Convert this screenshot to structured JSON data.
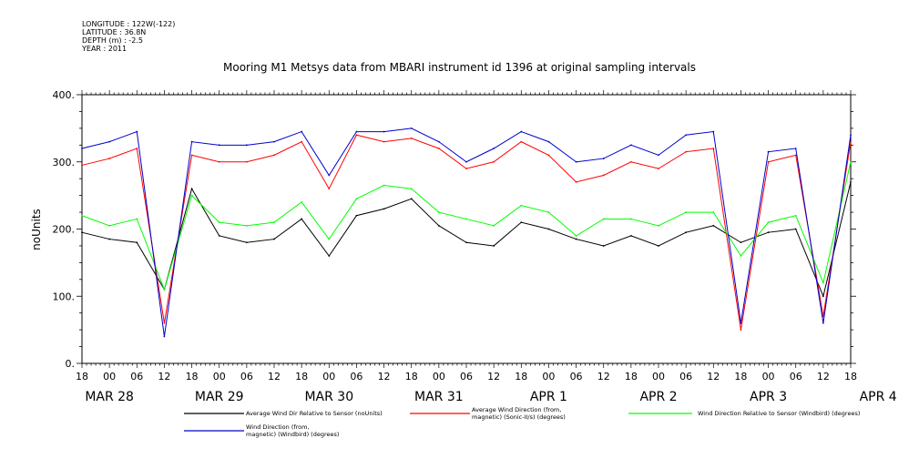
{
  "meta": {
    "longitude": "LONGITUDE : 122W(-122)",
    "latitude": "LATITUDE : 36.8N",
    "depth": "DEPTH (m) : -2.5",
    "year": "YEAR : 2011"
  },
  "chart_data": {
    "type": "line",
    "title": "Mooring M1 Metsys data from MBARI instrument id 1396 at original sampling intervals",
    "xlabel": "",
    "ylabel": "noUnits",
    "ylim": [
      0,
      400
    ],
    "y_ticks": [
      "0.",
      "100.",
      "200.",
      "300.",
      "400."
    ],
    "x_hour_ticks": [
      "18",
      "00",
      "06",
      "12",
      "18",
      "00",
      "06",
      "12",
      "18",
      "00",
      "06",
      "12",
      "18",
      "00",
      "06",
      "12",
      "18",
      "00",
      "06",
      "12",
      "18",
      "00",
      "06",
      "12",
      "18",
      "00",
      "06",
      "12",
      "18"
    ],
    "x_day_labels": [
      "MAR 28",
      "MAR 29",
      "MAR 30",
      "MAR 31",
      "APR  1",
      "APR  2",
      "APR  3",
      "APR  4"
    ],
    "grid": false,
    "legend_position": "bottom",
    "x_units": "hours since MAR 28 18:00",
    "x": [
      0,
      6,
      12,
      18,
      24,
      30,
      36,
      42,
      48,
      54,
      60,
      66,
      72,
      78,
      84,
      90,
      96,
      102,
      108,
      114,
      120,
      126,
      132,
      138,
      144,
      150,
      156,
      162,
      168
    ],
    "series": [
      {
        "name": "Average Wind Dir Relative to Sensor (noUnits)",
        "color": "#000000",
        "values": [
          195,
          185,
          180,
          110,
          260,
          190,
          180,
          185,
          215,
          160,
          220,
          230,
          245,
          205,
          180,
          175,
          210,
          200,
          185,
          175,
          190,
          175,
          195,
          205,
          180,
          195,
          200,
          100,
          270
        ]
      },
      {
        "name": "Average Wind Direction (from,\nmagnetic) (Sonic-II/s) (degrees)",
        "color": "#ff0000",
        "values": [
          295,
          305,
          320,
          60,
          310,
          300,
          300,
          310,
          330,
          260,
          340,
          330,
          335,
          320,
          290,
          300,
          330,
          310,
          270,
          280,
          300,
          290,
          315,
          320,
          50,
          300,
          310,
          70,
          330
        ]
      },
      {
        "name": "Wind Direction Relative to Sensor (Windbird) (degrees)",
        "color": "#00ff00",
        "values": [
          220,
          205,
          215,
          110,
          250,
          210,
          205,
          210,
          240,
          185,
          245,
          265,
          260,
          225,
          215,
          205,
          235,
          225,
          190,
          215,
          215,
          205,
          225,
          225,
          160,
          210,
          220,
          120,
          300
        ]
      },
      {
        "name": "Wind Direction (from,\nmagnetic) (Windbird) (degrees)",
        "color": "#0000cc",
        "values": [
          320,
          330,
          345,
          40,
          330,
          325,
          325,
          330,
          345,
          280,
          345,
          345,
          350,
          330,
          300,
          320,
          345,
          330,
          300,
          305,
          325,
          310,
          340,
          345,
          60,
          315,
          320,
          60,
          340
        ]
      }
    ]
  }
}
